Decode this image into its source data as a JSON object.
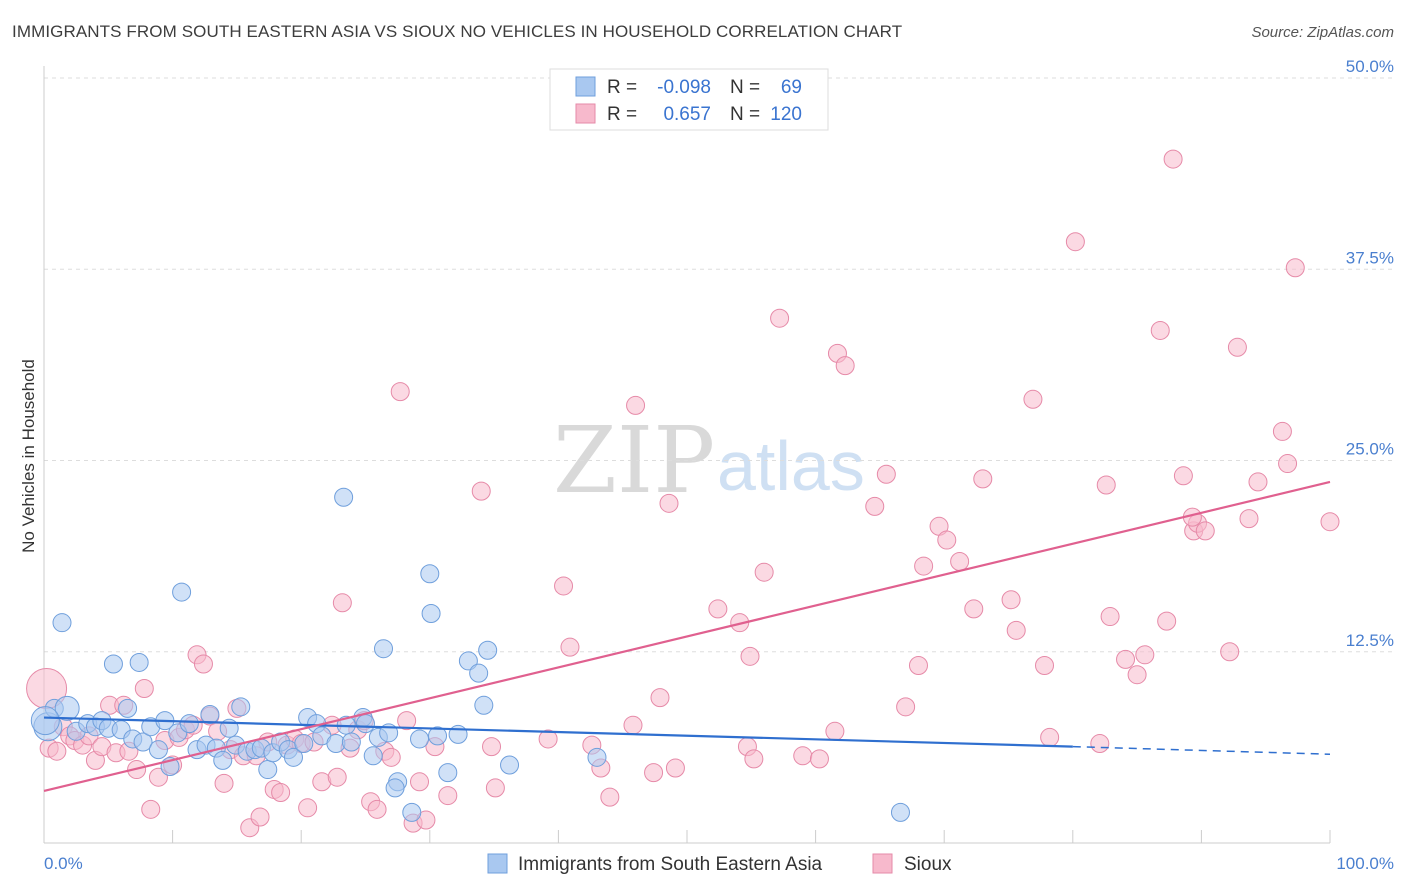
{
  "title": "IMMIGRANTS FROM SOUTH EASTERN ASIA VS SIOUX NO VEHICLES IN HOUSEHOLD CORRELATION CHART",
  "source": "Source: ZipAtlas.com",
  "watermark": {
    "zip": "ZIP",
    "atlas": "atlas"
  },
  "legend": {
    "rows": [
      {
        "r_label": "R =",
        "r_value": "-0.098",
        "n_label": "N =",
        "n_value": "69"
      },
      {
        "r_label": "R =",
        "r_value": "0.657",
        "n_label": "N =",
        "n_value": "120"
      }
    ]
  },
  "colors": {
    "blue_fill": "#a9c8f0",
    "blue_stroke": "#6f9fdc",
    "blue_line": "#2f6fcf",
    "pink_fill": "#f7b9cc",
    "pink_stroke": "#e68aa8",
    "pink_line": "#e0608f",
    "tick_label": "#4a7fcf",
    "grid": "#dddddd"
  },
  "chart_data": {
    "type": "scatter",
    "title": "IMMIGRANTS FROM SOUTH EASTERN ASIA VS SIOUX NO VEHICLES IN HOUSEHOLD CORRELATION CHART",
    "xlabel": "",
    "ylabel": "No Vehicles in Household",
    "xlim": [
      0,
      100
    ],
    "ylim": [
      0,
      50
    ],
    "x_tick_labels": [
      "0.0%",
      "100.0%"
    ],
    "y_ticks": [
      12.5,
      25.0,
      37.5,
      50.0
    ],
    "y_tick_labels": [
      "12.5%",
      "25.0%",
      "37.5%",
      "50.0%"
    ],
    "grid": true,
    "legend_position": "top-center",
    "series": [
      {
        "name": "Immigrants from South Eastern Asia",
        "r": -0.098,
        "n": 69,
        "trend": {
          "x0": 0,
          "y0": 8.2,
          "x1": 80,
          "y1": 6.3,
          "dash_to_x": 100,
          "dash_to_y": 5.8
        },
        "points": [
          [
            0.3,
            7.6
          ],
          [
            0.8,
            8.8
          ],
          [
            1.4,
            14.4
          ],
          [
            1.8,
            8.8
          ],
          [
            2.5,
            7.3
          ],
          [
            3.4,
            7.8
          ],
          [
            4.0,
            7.6
          ],
          [
            4.5,
            8.0
          ],
          [
            5.0,
            7.5
          ],
          [
            5.4,
            11.7
          ],
          [
            6.0,
            7.4
          ],
          [
            6.5,
            8.8
          ],
          [
            6.9,
            6.8
          ],
          [
            7.4,
            11.8
          ],
          [
            7.7,
            6.6
          ],
          [
            8.3,
            7.6
          ],
          [
            8.9,
            6.1
          ],
          [
            9.4,
            8.0
          ],
          [
            9.8,
            5.0
          ],
          [
            10.4,
            7.2
          ],
          [
            10.7,
            16.4
          ],
          [
            11.3,
            7.8
          ],
          [
            11.9,
            6.1
          ],
          [
            12.6,
            6.4
          ],
          [
            12.9,
            8.4
          ],
          [
            13.4,
            6.2
          ],
          [
            13.9,
            5.4
          ],
          [
            14.4,
            7.5
          ],
          [
            14.9,
            6.4
          ],
          [
            15.3,
            8.9
          ],
          [
            15.8,
            6.0
          ],
          [
            16.4,
            6.1
          ],
          [
            16.9,
            6.2
          ],
          [
            17.4,
            4.8
          ],
          [
            17.8,
            5.9
          ],
          [
            18.4,
            6.6
          ],
          [
            19.0,
            6.1
          ],
          [
            19.4,
            5.6
          ],
          [
            20.2,
            6.5
          ],
          [
            20.5,
            8.2
          ],
          [
            21.2,
            7.8
          ],
          [
            21.6,
            7.0
          ],
          [
            22.7,
            6.5
          ],
          [
            23.5,
            7.7
          ],
          [
            23.3,
            22.6
          ],
          [
            23.9,
            6.6
          ],
          [
            24.8,
            8.2
          ],
          [
            25.0,
            7.8
          ],
          [
            25.6,
            5.7
          ],
          [
            26.0,
            6.9
          ],
          [
            26.4,
            12.7
          ],
          [
            26.8,
            7.2
          ],
          [
            27.5,
            4.0
          ],
          [
            27.3,
            3.6
          ],
          [
            28.6,
            2.0
          ],
          [
            29.2,
            6.8
          ],
          [
            30.0,
            17.6
          ],
          [
            30.1,
            15.0
          ],
          [
            30.6,
            7.0
          ],
          [
            31.4,
            4.6
          ],
          [
            32.2,
            7.1
          ],
          [
            33.0,
            11.9
          ],
          [
            33.8,
            11.1
          ],
          [
            34.2,
            9.0
          ],
          [
            34.5,
            12.6
          ],
          [
            36.2,
            5.1
          ],
          [
            43.0,
            5.6
          ],
          [
            66.6,
            2.0
          ],
          [
            0.1,
            8.0
          ]
        ]
      },
      {
        "name": "Sioux",
        "r": 0.657,
        "n": 120,
        "trend": {
          "x0": 0,
          "y0": 3.4,
          "x1": 100,
          "y1": 23.6
        },
        "points": [
          [
            0.2,
            10.1
          ],
          [
            0.4,
            6.2
          ],
          [
            1.0,
            6.0
          ],
          [
            1.5,
            7.6
          ],
          [
            2.0,
            7.0
          ],
          [
            2.4,
            6.7
          ],
          [
            3.0,
            6.4
          ],
          [
            3.5,
            7.0
          ],
          [
            4.0,
            5.4
          ],
          [
            4.5,
            6.3
          ],
          [
            5.1,
            9.0
          ],
          [
            5.6,
            5.9
          ],
          [
            6.2,
            9.0
          ],
          [
            6.6,
            6.0
          ],
          [
            7.2,
            4.8
          ],
          [
            7.8,
            10.1
          ],
          [
            8.3,
            2.2
          ],
          [
            8.9,
            4.3
          ],
          [
            9.4,
            6.7
          ],
          [
            10.0,
            5.1
          ],
          [
            10.5,
            6.9
          ],
          [
            11.0,
            7.4
          ],
          [
            11.6,
            7.7
          ],
          [
            11.9,
            12.3
          ],
          [
            12.4,
            11.7
          ],
          [
            12.9,
            8.3
          ],
          [
            13.5,
            7.3
          ],
          [
            14.0,
            3.9
          ],
          [
            14.5,
            6.1
          ],
          [
            15.0,
            8.8
          ],
          [
            15.5,
            5.7
          ],
          [
            16.0,
            1.0
          ],
          [
            16.5,
            5.7
          ],
          [
            16.8,
            1.7
          ],
          [
            17.4,
            6.6
          ],
          [
            17.9,
            3.5
          ],
          [
            18.4,
            3.3
          ],
          [
            18.9,
            6.4
          ],
          [
            19.5,
            6.8
          ],
          [
            20.0,
            6.5
          ],
          [
            20.5,
            2.3
          ],
          [
            21.0,
            6.6
          ],
          [
            21.6,
            4.0
          ],
          [
            22.4,
            7.7
          ],
          [
            22.8,
            4.3
          ],
          [
            23.2,
            15.7
          ],
          [
            23.8,
            6.2
          ],
          [
            24.4,
            7.4
          ],
          [
            24.9,
            8.0
          ],
          [
            25.4,
            2.7
          ],
          [
            25.9,
            2.2
          ],
          [
            26.5,
            6.0
          ],
          [
            27.0,
            5.6
          ],
          [
            27.7,
            29.5
          ],
          [
            28.2,
            8.0
          ],
          [
            28.7,
            1.3
          ],
          [
            29.2,
            4.0
          ],
          [
            29.7,
            1.5
          ],
          [
            30.4,
            6.3
          ],
          [
            31.4,
            3.1
          ],
          [
            34.0,
            23.0
          ],
          [
            35.1,
            3.6
          ],
          [
            34.8,
            6.3
          ],
          [
            39.2,
            6.8
          ],
          [
            40.4,
            16.8
          ],
          [
            40.9,
            12.8
          ],
          [
            42.6,
            6.4
          ],
          [
            43.3,
            4.9
          ],
          [
            44.0,
            3.0
          ],
          [
            45.8,
            7.7
          ],
          [
            46.0,
            28.6
          ],
          [
            47.4,
            4.6
          ],
          [
            47.9,
            9.5
          ],
          [
            48.6,
            22.2
          ],
          [
            49.1,
            4.9
          ],
          [
            52.4,
            15.3
          ],
          [
            54.1,
            14.4
          ],
          [
            54.7,
            6.3
          ],
          [
            54.9,
            12.2
          ],
          [
            55.2,
            5.5
          ],
          [
            56.0,
            17.7
          ],
          [
            57.2,
            34.3
          ],
          [
            59.0,
            5.7
          ],
          [
            60.3,
            5.5
          ],
          [
            61.5,
            7.3
          ],
          [
            61.7,
            32.0
          ],
          [
            62.3,
            31.2
          ],
          [
            64.6,
            22.0
          ],
          [
            65.5,
            24.1
          ],
          [
            67.0,
            8.9
          ],
          [
            68.0,
            11.6
          ],
          [
            68.4,
            18.1
          ],
          [
            69.6,
            20.7
          ],
          [
            70.2,
            19.8
          ],
          [
            71.2,
            18.4
          ],
          [
            72.3,
            15.3
          ],
          [
            73.0,
            23.8
          ],
          [
            75.2,
            15.9
          ],
          [
            75.6,
            13.9
          ],
          [
            76.9,
            29.0
          ],
          [
            77.8,
            11.6
          ],
          [
            78.2,
            6.9
          ],
          [
            80.2,
            39.3
          ],
          [
            82.1,
            6.5
          ],
          [
            82.6,
            23.4
          ],
          [
            82.9,
            14.8
          ],
          [
            84.1,
            12.0
          ],
          [
            85.0,
            11.0
          ],
          [
            85.6,
            12.3
          ],
          [
            86.8,
            33.5
          ],
          [
            87.3,
            14.5
          ],
          [
            87.8,
            44.7
          ],
          [
            88.6,
            24.0
          ],
          [
            89.4,
            20.4
          ],
          [
            89.7,
            20.9
          ],
          [
            90.3,
            20.4
          ],
          [
            92.2,
            12.5
          ],
          [
            92.8,
            32.4
          ],
          [
            93.7,
            21.2
          ],
          [
            94.4,
            23.6
          ],
          [
            96.3,
            26.9
          ],
          [
            96.7,
            24.8
          ],
          [
            97.3,
            37.6
          ],
          [
            100.0,
            21.0
          ],
          [
            89.3,
            21.3
          ]
        ]
      }
    ]
  },
  "bottom_legend": [
    {
      "label": "Immigrants from South Eastern Asia"
    },
    {
      "label": "Sioux"
    }
  ]
}
